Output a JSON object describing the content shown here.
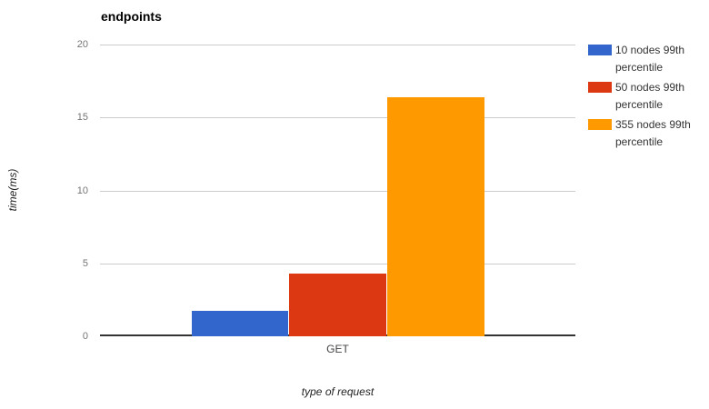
{
  "chart_data": {
    "type": "bar",
    "title": "endpoints",
    "xlabel": "type of request",
    "ylabel": "time(ms)",
    "categories": [
      "GET"
    ],
    "series": [
      {
        "name": "10 nodes 99th percentile",
        "color": "#3366CC",
        "values": [
          1.75
        ]
      },
      {
        "name": "50 nodes 99th percentile",
        "color": "#DC3912",
        "values": [
          4.3
        ]
      },
      {
        "name": "355 nodes 99th percentile",
        "color": "#FF9900",
        "values": [
          16.4
        ]
      }
    ],
    "ylim": [
      0,
      20
    ],
    "yticks": [
      0,
      5,
      10,
      15,
      20
    ],
    "grid": true,
    "legend_position": "right"
  },
  "colors": {
    "background": "#FFFFFF",
    "gridline": "#CCCCCC",
    "axis_line": "#333333",
    "tick_label": "#757575",
    "category_label": "#444444",
    "axis_title": "#222222",
    "title": "#000000",
    "series_blue": "#3366CC",
    "series_red": "#DC3912",
    "series_orange": "#FF9900"
  }
}
